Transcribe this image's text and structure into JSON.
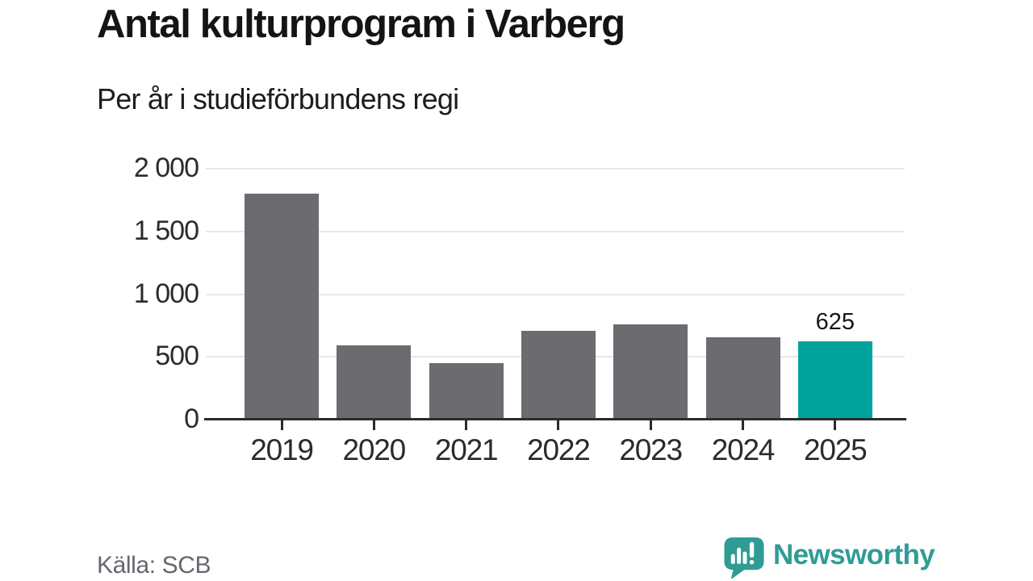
{
  "title": "Antal kulturprogram i Varberg",
  "subtitle": "Per år i studieförbundens regi",
  "source": "Källa: SCB",
  "brand": {
    "name": "Newsworthy",
    "icon": "bar-chart-speech-bubble-icon",
    "color": "#2f9c94"
  },
  "colors": {
    "bar_default": "#6b6b70",
    "bar_highlight": "#00a39b",
    "gridline": "#e7e7e7",
    "axis": "#2b2b2b",
    "title_text": "#141414",
    "muted_text": "#67666f"
  },
  "chart_data": {
    "type": "bar",
    "title": "Antal kulturprogram i Varberg",
    "subtitle": "Per år i studieförbundens regi",
    "xlabel": "",
    "ylabel": "",
    "categories": [
      "2019",
      "2020",
      "2021",
      "2022",
      "2023",
      "2024",
      "2025"
    ],
    "values": [
      1800,
      590,
      450,
      705,
      760,
      655,
      625
    ],
    "highlighted_category": "2025",
    "data_labels": {
      "2025": "625"
    },
    "ylim": [
      0,
      2000
    ],
    "yticks": [
      0,
      500,
      1000,
      1500,
      2000
    ],
    "ytick_labels": [
      "0",
      "500",
      "1 000",
      "1 500",
      "2 000"
    ],
    "grid": "horizontal",
    "legend": "none",
    "source": "Källa: SCB"
  }
}
